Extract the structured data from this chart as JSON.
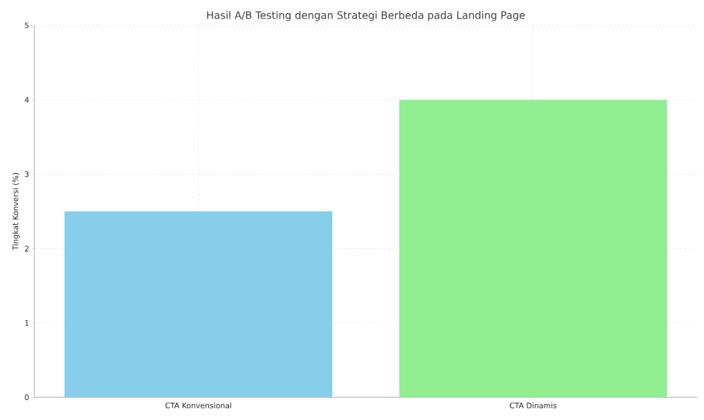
{
  "chart_data": {
    "type": "bar",
    "title": "Hasil A/B Testing dengan Strategi Berbeda pada Landing Page",
    "ylabel": "Tingkat Konversi (%)",
    "categories": [
      "CTA Konvensional",
      "CTA Dinamis"
    ],
    "values": [
      2.5,
      4
    ],
    "colors": [
      "#87ceeb",
      "#90ee90"
    ],
    "ylim": [
      0,
      5
    ],
    "yticks": [
      0,
      1,
      2,
      3,
      4,
      5
    ],
    "grid": true
  }
}
